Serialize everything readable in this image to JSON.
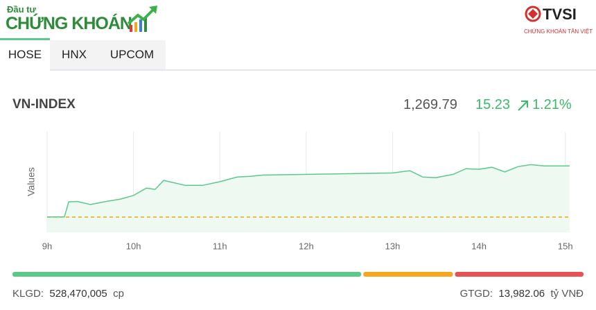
{
  "header": {
    "logo_small": "Đầu tư",
    "logo_main": "CHỨNG KHOÁN",
    "brand": "TVSI",
    "brand_sub": "CHỨNG KHOÁN TÂN VIỆT"
  },
  "tabs": [
    "HOSE",
    "HNX",
    "UPCOM"
  ],
  "index": {
    "name": "VN-INDEX",
    "value": "1,269.79",
    "change": "15.23",
    "percent": "1.21%"
  },
  "chart_data": {
    "type": "line",
    "y_label": "Values",
    "color": "#5cc98a",
    "fill": "#eefaf1",
    "grid": true,
    "x": [
      9.0,
      9.2,
      9.25,
      9.35,
      9.5,
      9.7,
      9.85,
      10.0,
      10.15,
      10.25,
      10.35,
      10.45,
      10.6,
      10.8,
      11.0,
      11.2,
      11.35,
      11.5,
      13.0,
      13.2,
      13.35,
      13.5,
      13.7,
      13.85,
      14.0,
      14.15,
      14.3,
      14.45,
      14.6,
      14.75,
      15.05
    ],
    "values": [
      1254.6,
      1254.6,
      1259.1,
      1259.2,
      1258.3,
      1259.3,
      1259.9,
      1261.0,
      1263.2,
      1262.8,
      1265.5,
      1264.9,
      1264.0,
      1264.0,
      1265.1,
      1266.5,
      1266.7,
      1267.1,
      1267.7,
      1268.4,
      1266.5,
      1266.3,
      1267.3,
      1269.0,
      1268.8,
      1269.4,
      1268.0,
      1269.6,
      1270.2,
      1269.8,
      1269.8
    ],
    "xlim": [
      9,
      15.05
    ],
    "ylim": [
      1250,
      1280
    ],
    "xticks": [
      {
        "value": 9,
        "label": "9h"
      },
      {
        "value": 10,
        "label": "10h"
      },
      {
        "value": 11,
        "label": "11h"
      },
      {
        "value": 12,
        "label": "12h"
      },
      {
        "value": 13,
        "label": "13h"
      },
      {
        "value": 14,
        "label": "14h"
      },
      {
        "value": 15,
        "label": "15h"
      }
    ],
    "reference_line": 1254.56,
    "reference_color": "#f0a500"
  },
  "breadth": {
    "values": [
      502,
      129,
      185
    ],
    "colors": [
      "#5cc98a",
      "#f5a623",
      "#e55353"
    ]
  },
  "footer": {
    "volume_label": "KLGD:",
    "volume": "528,470,005",
    "volume_unit": "cp",
    "value_label": "GTGD:",
    "value": "13,982.06",
    "value_unit": "tỷ VNĐ"
  }
}
